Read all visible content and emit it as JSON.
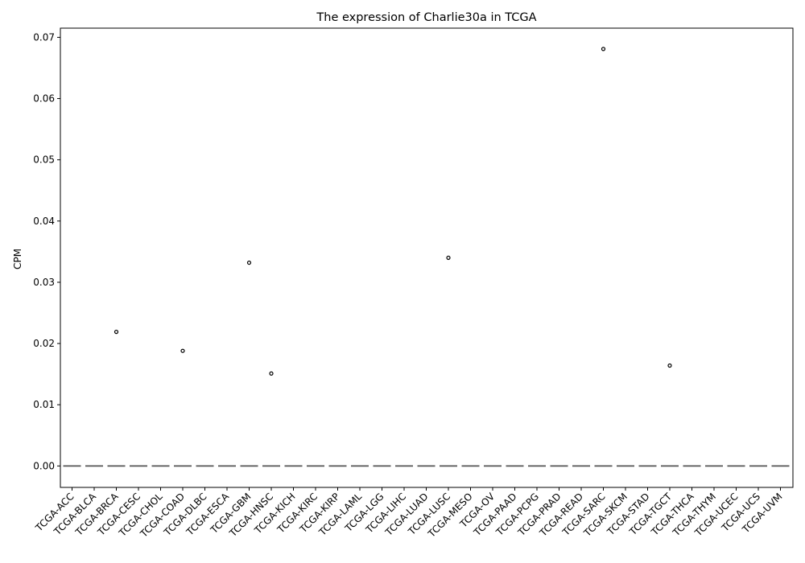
{
  "chart_data": {
    "type": "box",
    "title": "The expression of Charlie30a in TCGA",
    "xlabel": "",
    "ylabel": "CPM",
    "ylim": [
      -0.0035,
      0.0715
    ],
    "yticks": [
      0.0,
      0.01,
      0.02,
      0.03,
      0.04,
      0.05,
      0.06,
      0.07
    ],
    "ytick_labels": [
      "0.00",
      "0.01",
      "0.02",
      "0.03",
      "0.04",
      "0.05",
      "0.06",
      "0.07"
    ],
    "grid": false,
    "categories": [
      "TCGA-ACC",
      "TCGA-BLCA",
      "TCGA-BRCA",
      "TCGA-CESC",
      "TCGA-CHOL",
      "TCGA-COAD",
      "TCGA-DLBC",
      "TCGA-ESCA",
      "TCGA-GBM",
      "TCGA-HNSC",
      "TCGA-KICH",
      "TCGA-KIRC",
      "TCGA-KIRP",
      "TCGA-LAML",
      "TCGA-LGG",
      "TCGA-LIHC",
      "TCGA-LUAD",
      "TCGA-LUSC",
      "TCGA-MESO",
      "TCGA-OV",
      "TCGA-PAAD",
      "TCGA-PCPG",
      "TCGA-PRAD",
      "TCGA-READ",
      "TCGA-SARC",
      "TCGA-SKCM",
      "TCGA-STAD",
      "TCGA-TGCT",
      "TCGA-THCA",
      "TCGA-THYM",
      "TCGA-UCEC",
      "TCGA-UCS",
      "TCGA-UVM"
    ],
    "median": [
      0,
      0,
      0,
      0,
      0,
      0,
      0,
      0,
      0,
      0,
      0,
      0,
      0,
      0,
      0,
      0,
      0,
      0,
      0,
      0,
      0,
      0,
      0,
      0,
      0,
      0,
      0,
      0,
      0,
      0,
      0,
      0,
      0
    ],
    "outliers": [
      {
        "category": "TCGA-BRCA",
        "value": 0.0219
      },
      {
        "category": "TCGA-COAD",
        "value": 0.0188
      },
      {
        "category": "TCGA-GBM",
        "value": 0.0332
      },
      {
        "category": "TCGA-HNSC",
        "value": 0.0151
      },
      {
        "category": "TCGA-LUSC",
        "value": 0.034
      },
      {
        "category": "TCGA-SARC",
        "value": 0.0681
      },
      {
        "category": "TCGA-TGCT",
        "value": 0.0164
      }
    ],
    "colors": {
      "box_line": "#555555",
      "outlier": "#000000",
      "axis": "#000000"
    }
  }
}
